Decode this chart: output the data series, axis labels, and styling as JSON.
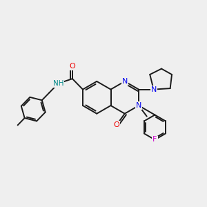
{
  "background_color": "#efefef",
  "bond_color": "#1a1a1a",
  "bond_width": 1.4,
  "atom_colors": {
    "N": "#0000ee",
    "O": "#ee0000",
    "F": "#cc00cc",
    "H": "#008888",
    "C": "#1a1a1a"
  },
  "font_size_atom": 8.5,
  "fig_width": 3.0,
  "fig_height": 3.0,
  "dpi": 100,
  "xlim": [
    0,
    10
  ],
  "ylim": [
    0,
    10
  ]
}
